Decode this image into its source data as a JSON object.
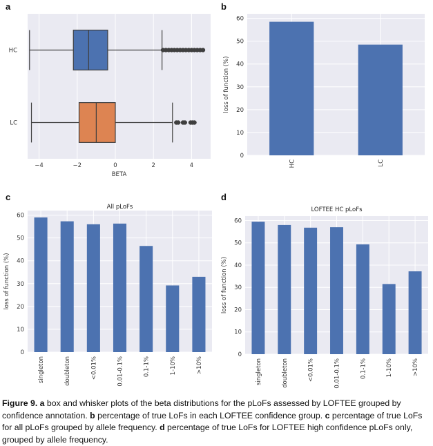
{
  "chart_data": [
    {
      "panel": "a",
      "type": "box",
      "categories": [
        "HC",
        "LC"
      ],
      "xlabel": "BETA",
      "xlim": [
        -4.6,
        5.0
      ],
      "xticks": [
        "−4",
        "−2",
        "0",
        "2",
        "4"
      ],
      "xtick_values": [
        -4,
        -2,
        0,
        2,
        4
      ],
      "boxes": [
        {
          "label": "HC",
          "whisker_low": -4.5,
          "q1": -2.2,
          "median": -1.4,
          "q3": -0.4,
          "whisker_high": 2.45,
          "outliers": [
            2.5,
            2.65,
            2.8,
            2.95,
            3.1,
            3.25,
            3.4,
            3.55,
            3.7,
            3.85,
            4.0,
            4.15,
            4.3,
            4.45,
            4.6
          ],
          "color": "#4c72b0"
        },
        {
          "label": "LC",
          "whisker_low": -4.4,
          "q1": -1.9,
          "median": -1.0,
          "q3": 0.0,
          "whisker_high": 3.0,
          "outliers": [
            3.2,
            3.3,
            3.55,
            3.65,
            3.95,
            4.05,
            4.15
          ],
          "color": "#dd8452"
        }
      ]
    },
    {
      "panel": "b",
      "type": "bar",
      "categories": [
        "HC",
        "LC"
      ],
      "values": [
        58.5,
        48.5
      ],
      "ylabel": "loss of function (%)",
      "ylim": [
        0,
        62
      ],
      "yticks": [
        0,
        10,
        20,
        30,
        40,
        50,
        60
      ]
    },
    {
      "panel": "c",
      "type": "bar",
      "title": "All pLoFs",
      "categories": [
        "singleton",
        "doubleton",
        "<0.01%",
        "0.01-0.1%",
        "0.1-1%",
        "1-10%",
        ">10%"
      ],
      "values": [
        59.0,
        57.3,
        56.0,
        56.3,
        46.5,
        29.2,
        33.0
      ],
      "ylabel": "loss of function (%)",
      "ylim": [
        0,
        62
      ],
      "yticks": [
        0,
        10,
        20,
        30,
        40,
        50,
        60
      ]
    },
    {
      "panel": "d",
      "type": "bar",
      "title": "LOFTEE HC pLoFs",
      "categories": [
        "singleton",
        "doubleton",
        "<0.01%",
        "0.01-0.1%",
        "0.1-1%",
        "1-10%",
        ">10%"
      ],
      "values": [
        59.5,
        58.0,
        56.8,
        57.0,
        49.3,
        31.5,
        37.2
      ],
      "ylabel": "loss of function (%)",
      "ylim": [
        0,
        62
      ],
      "yticks": [
        0,
        10,
        20,
        30,
        40,
        50,
        60
      ]
    }
  ],
  "style": {
    "panel_bg": "#eaeaf2",
    "grid": "#ffffff",
    "bar_color": "#4c72b0",
    "text": "#333333"
  },
  "caption": {
    "figure_label": "Figure 9.",
    "parts": [
      {
        "letter": "a",
        "text": " box and whisker plots of the beta distributions for the pLoFs assessed by LOFTEE grouped by confidence annotation. "
      },
      {
        "letter": "b",
        "text": " percentage of true LoFs in each LOFTEE confidence group. "
      },
      {
        "letter": "c",
        "text": " percentage of true LoFs for all pLoFs grouped by allele frequency. "
      },
      {
        "letter": "d",
        "text": " percentage of true LoFs for LOFTEE high confidence pLoFs only, grouped by allele frequency."
      }
    ]
  }
}
